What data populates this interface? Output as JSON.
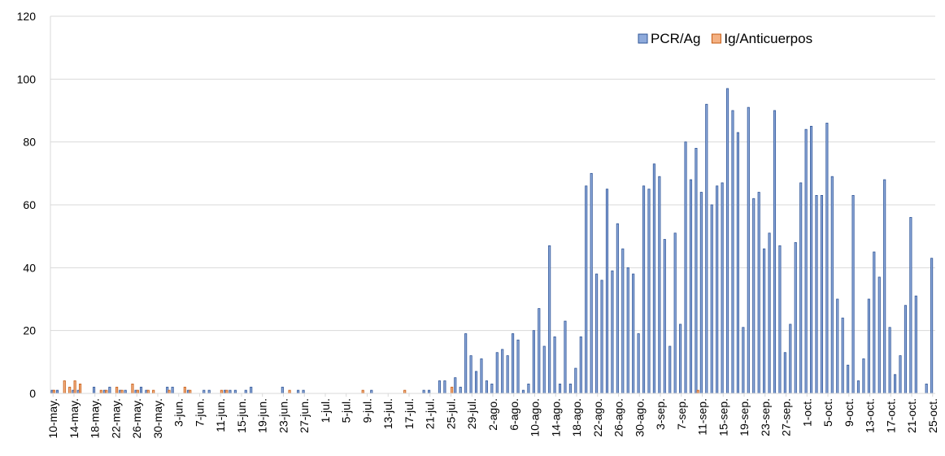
{
  "chart_data": {
    "type": "bar",
    "categories": [
      "10-may.",
      null,
      null,
      null,
      "14-may.",
      null,
      null,
      null,
      "18-may.",
      null,
      null,
      null,
      "22-may.",
      null,
      null,
      null,
      "26-may.",
      null,
      null,
      null,
      "30-may.",
      null,
      null,
      null,
      "3-jun.",
      null,
      null,
      null,
      "7-jun.",
      null,
      null,
      null,
      "11-jun.",
      null,
      null,
      null,
      "15-jun.",
      null,
      null,
      null,
      "19-jun.",
      null,
      null,
      null,
      "23-jun.",
      null,
      null,
      null,
      "27-jun.",
      null,
      null,
      null,
      "1-jul.",
      null,
      null,
      null,
      "5-jul.",
      null,
      null,
      null,
      "9-jul.",
      null,
      null,
      null,
      "13-jul.",
      null,
      null,
      null,
      "17-jul.",
      null,
      null,
      null,
      "21-jul.",
      null,
      null,
      null,
      "25-jul.",
      null,
      null,
      null,
      "29-jul.",
      null,
      null,
      null,
      "2-ago.",
      null,
      null,
      null,
      "6-ago.",
      null,
      null,
      null,
      "10-ago.",
      null,
      null,
      null,
      "14-ago.",
      null,
      null,
      null,
      "18-ago.",
      null,
      null,
      null,
      "22-ago.",
      null,
      null,
      null,
      "26-ago.",
      null,
      null,
      null,
      "30-ago.",
      null,
      null,
      null,
      "3-sep.",
      null,
      null,
      null,
      "7-sep.",
      null,
      null,
      null,
      "11-sep.",
      null,
      null,
      null,
      "15-sep.",
      null,
      null,
      null,
      "19-sep.",
      null,
      null,
      null,
      "23-sep.",
      null,
      null,
      null,
      "27-sep.",
      null,
      null,
      null,
      "1-oct.",
      null,
      null,
      null,
      "5-oct.",
      null,
      null,
      null,
      "9-oct.",
      null,
      null,
      null,
      "13-oct.",
      null,
      null,
      null,
      "17-oct.",
      null,
      null,
      null,
      "21-oct.",
      null,
      null,
      null,
      "25-oct."
    ],
    "series": [
      {
        "name": "PCR/Ag",
        "color": "#8eaadb",
        "edge": "#2f5597",
        "values": [
          1,
          1,
          0,
          0,
          1,
          1,
          0,
          0,
          2,
          0,
          1,
          2,
          0,
          1,
          1,
          0,
          1,
          2,
          1,
          0,
          0,
          0,
          2,
          2,
          0,
          0,
          1,
          0,
          0,
          1,
          1,
          0,
          0,
          1,
          1,
          1,
          0,
          1,
          2,
          0,
          0,
          0,
          0,
          0,
          2,
          0,
          0,
          1,
          1,
          0,
          0,
          0,
          0,
          0,
          0,
          0,
          0,
          0,
          0,
          0,
          0,
          1,
          0,
          0,
          0,
          0,
          0,
          0,
          0,
          0,
          0,
          1,
          1,
          0,
          4,
          4,
          0,
          5,
          2,
          19,
          12,
          7,
          11,
          4,
          3,
          13,
          14,
          12,
          19,
          17,
          1,
          3,
          20,
          27,
          15,
          47,
          18,
          3,
          23,
          3,
          8,
          18,
          66,
          70,
          38,
          36,
          65,
          39,
          54,
          46,
          40,
          38,
          19,
          66,
          65,
          73,
          69,
          49,
          15,
          51,
          22,
          80,
          68,
          78,
          64,
          92,
          60,
          66,
          67,
          97,
          90,
          83,
          21,
          91,
          62,
          64,
          46,
          51,
          90,
          47,
          13,
          22,
          48,
          67,
          84,
          85,
          63,
          63,
          86,
          69,
          30,
          24,
          9,
          63,
          4,
          11,
          30,
          45,
          37,
          68,
          21,
          6,
          12,
          28,
          56,
          31,
          0,
          3,
          43
        ]
      },
      {
        "name": "Ig/Anticuerpos",
        "color": "#f4b183",
        "edge": "#c55a11",
        "values": [
          1,
          0,
          4,
          2,
          4,
          3,
          0,
          0,
          0,
          1,
          1,
          0,
          2,
          1,
          0,
          3,
          1,
          0,
          1,
          1,
          0,
          0,
          1,
          0,
          0,
          2,
          1,
          0,
          0,
          0,
          0,
          0,
          1,
          1,
          0,
          0,
          0,
          0,
          0,
          0,
          0,
          0,
          0,
          0,
          0,
          1,
          0,
          0,
          0,
          0,
          0,
          0,
          0,
          0,
          0,
          0,
          0,
          0,
          0,
          1,
          0,
          0,
          0,
          0,
          0,
          0,
          0,
          1,
          0,
          0,
          0,
          0,
          0,
          0,
          0,
          0,
          2,
          0,
          0,
          0,
          0,
          0,
          0,
          0,
          0,
          0,
          0,
          0,
          0,
          0,
          0,
          0,
          0,
          0,
          0,
          0,
          0,
          0,
          0,
          0,
          0,
          0,
          0,
          0,
          0,
          0,
          0,
          0,
          0,
          0,
          0,
          0,
          0,
          0,
          0,
          0,
          0,
          0,
          0,
          0,
          0,
          0,
          0,
          1,
          0,
          0,
          0,
          0,
          0,
          0,
          0,
          0,
          0,
          0,
          0,
          0,
          0,
          0,
          0,
          0,
          0,
          0,
          0,
          0,
          0,
          0,
          0,
          0,
          0,
          0,
          0,
          0,
          0,
          0,
          0,
          0,
          0,
          0,
          0,
          0,
          0,
          0,
          0,
          0,
          0,
          0,
          0,
          0,
          0
        ]
      }
    ],
    "ylim": [
      0,
      120
    ],
    "yticks": [
      0,
      20,
      40,
      60,
      80,
      100,
      120
    ],
    "grid": true,
    "legend": "top-right"
  }
}
